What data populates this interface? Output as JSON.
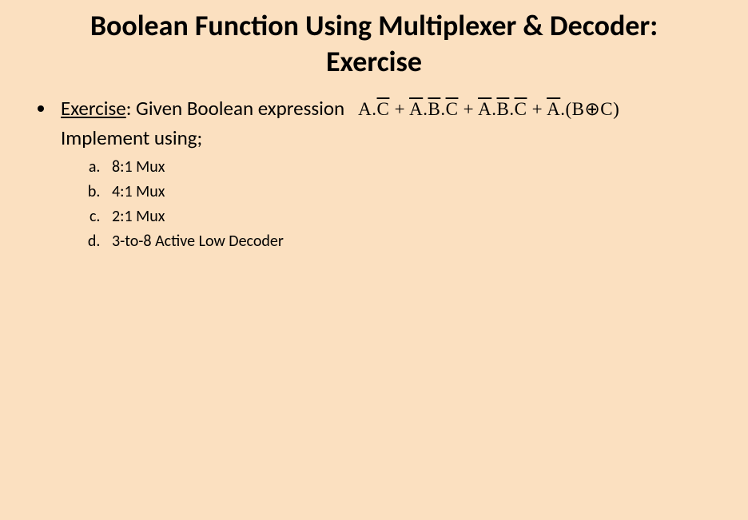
{
  "colors": {
    "background": "#fbe0c0",
    "text": "#000000"
  },
  "title": {
    "line1": "Boolean Function Using Multiplexer & Decoder:",
    "line2": "Exercise",
    "fontsize": 36,
    "weight": 700
  },
  "body": {
    "exercise_label": "Exercise",
    "given_text": ": Given  Boolean expression",
    "implement_text": "Implement using;",
    "fontsize_main": 25,
    "fontsize_sub": 20,
    "expression": {
      "font": "Times New Roman",
      "fontsize": 23,
      "terms": [
        {
          "parts": [
            {
              "t": "A."
            },
            {
              "t": "C",
              "bar": true
            }
          ]
        },
        {
          "parts": [
            {
              "t": "A",
              "bar": true
            },
            {
              "t": "."
            },
            {
              "t": "B",
              "bar": true
            },
            {
              "t": "."
            },
            {
              "t": "C",
              "bar": true
            }
          ]
        },
        {
          "parts": [
            {
              "t": "A",
              "bar": true
            },
            {
              "t": "."
            },
            {
              "t": "B",
              "bar": true
            },
            {
              "t": "."
            },
            {
              "t": "C",
              "bar": true
            }
          ]
        },
        {
          "parts": [
            {
              "t": "A",
              "bar": true
            },
            {
              "t": ".(B"
            },
            {
              "t": "⊕",
              "op": true
            },
            {
              "t": "C)"
            }
          ]
        }
      ],
      "separator": "  +  "
    },
    "sub_items": [
      "8:1 Mux",
      "4:1 Mux",
      "2:1 Mux",
      "3-to-8 Active Low Decoder"
    ]
  }
}
